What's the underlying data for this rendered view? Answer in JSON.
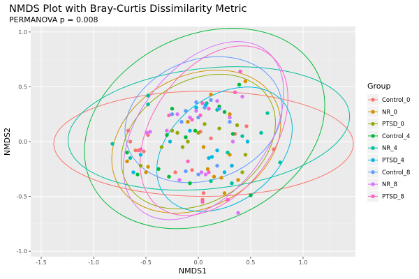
{
  "chart_data": {
    "type": "scatter",
    "title": "NMDS Plot with Bray-Curtis Dissimilarity Metric",
    "subtitle": "PERMANOVA p = 0.008",
    "xlabel": "NMDS1",
    "ylabel": "NMDS2",
    "xlim": [
      -1.6,
      1.5
    ],
    "ylim": [
      -1.05,
      1.05
    ],
    "xticks": [
      -1.5,
      -1.0,
      -0.5,
      0.0,
      0.5,
      1.0
    ],
    "xtick_labels": [
      "-1.5",
      "-1.0",
      "-0.5",
      "0.0",
      "0.5",
      "1.0"
    ],
    "yticks": [
      -1.0,
      -0.5,
      0.0,
      0.5,
      1.0
    ],
    "ytick_labels": [
      "-1.0",
      "-0.5",
      "0.0",
      "0.5",
      "1.0"
    ],
    "grid": true,
    "panel_background": "#ebebeb",
    "grid_color": "#ffffff",
    "legend": {
      "title": "Group",
      "position": "right"
    },
    "series": [
      {
        "name": "Control_0",
        "color": "#F8766D",
        "points": [
          [
            -0.67,
            0.1
          ],
          [
            -0.65,
            0.0
          ],
          [
            -0.6,
            -0.08
          ],
          [
            -0.57,
            -0.08
          ],
          [
            -0.48,
            0.06
          ],
          [
            -0.52,
            -0.09
          ],
          [
            0.02,
            0.09
          ],
          [
            0.12,
            0.03
          ],
          [
            -0.22,
            -0.28
          ],
          [
            0.35,
            0.07
          ],
          [
            0.46,
            0.14
          ],
          [
            0.05,
            -0.47
          ],
          [
            0.04,
            -0.53
          ],
          [
            0.72,
            -0.07
          ],
          [
            -0.06,
            -0.26
          ]
        ],
        "ellipse": {
          "cx": 0.05,
          "cy": -0.02,
          "rx": 1.43,
          "ry": 0.48,
          "angle": 0
        }
      },
      {
        "name": "NR_0",
        "color": "#D39200",
        "points": [
          [
            -0.68,
            -0.18
          ],
          [
            -0.5,
            -0.28
          ],
          [
            -0.48,
            -0.23
          ],
          [
            0.12,
            0.43
          ],
          [
            0.15,
            -0.32
          ],
          [
            0.25,
            -0.47
          ],
          [
            0.3,
            -0.12
          ],
          [
            0.05,
            -0.05
          ],
          [
            0.22,
            -0.33
          ],
          [
            0.38,
            -0.35
          ],
          [
            0.3,
            0.25
          ],
          [
            0.45,
            0.55
          ],
          [
            0.09,
            -0.25
          ],
          [
            -0.1,
            0.18
          ]
        ],
        "ellipse": {
          "cx": -0.02,
          "cy": 0.0,
          "rx": 0.85,
          "ry": 0.6,
          "angle": -28
        }
      },
      {
        "name": "PTSD_0",
        "color": "#93AA00",
        "points": [
          [
            -0.55,
            -0.22
          ],
          [
            -0.35,
            -0.05
          ],
          [
            -0.2,
            0.08
          ],
          [
            -0.25,
            0.1
          ],
          [
            -0.15,
            -0.05
          ],
          [
            -0.08,
            0.22
          ],
          [
            0.0,
            0.08
          ],
          [
            0.2,
            0.12
          ],
          [
            0.32,
            -0.22
          ],
          [
            0.42,
            -0.28
          ],
          [
            0.45,
            -0.12
          ],
          [
            0.37,
            0.15
          ],
          [
            -0.1,
            0.0
          ],
          [
            0.06,
            0.16
          ]
        ],
        "ellipse": {
          "cx": 0.0,
          "cy": 0.0,
          "rx": 0.79,
          "ry": 0.55,
          "angle": -32
        }
      },
      {
        "name": "Control_4",
        "color": "#00BA38",
        "points": [
          [
            -0.68,
            -0.1
          ],
          [
            -0.58,
            -0.3
          ],
          [
            -0.38,
            -0.25
          ],
          [
            -0.28,
            -0.32
          ],
          [
            -0.25,
            0.3
          ],
          [
            0.2,
            0.32
          ],
          [
            -0.03,
            0.1
          ],
          [
            -0.3,
            0.06
          ],
          [
            0.33,
            0.07
          ],
          [
            0.39,
            0.52
          ],
          [
            0.25,
            0.27
          ],
          [
            -0.08,
            -0.38
          ],
          [
            0.5,
            -0.49
          ],
          [
            -0.12,
            0.04
          ]
        ],
        "ellipse": {
          "cx": 0.06,
          "cy": 0.12,
          "rx": 1.2,
          "ry": 0.85,
          "angle": -26
        }
      },
      {
        "name": "NR_4",
        "color": "#00C19F",
        "points": [
          [
            -0.82,
            -0.02
          ],
          [
            -0.65,
            -0.15
          ],
          [
            -0.48,
            0.42
          ],
          [
            -0.48,
            0.34
          ],
          [
            -0.12,
            0.28
          ],
          [
            0.08,
            0.35
          ],
          [
            0.18,
            0.29
          ],
          [
            0.12,
            -0.36
          ],
          [
            0.28,
            -0.1
          ],
          [
            0.42,
            0.05
          ],
          [
            0.6,
            0.08
          ],
          [
            0.66,
            0.26
          ],
          [
            0.78,
            -0.19
          ],
          [
            0.32,
            -0.38
          ]
        ],
        "ellipse": {
          "cx": 0.1,
          "cy": 0.12,
          "rx": 1.35,
          "ry": 0.55,
          "angle": -6
        }
      },
      {
        "name": "PTSD_4",
        "color": "#00B9E3",
        "points": [
          [
            -0.62,
            -0.28
          ],
          [
            -0.55,
            -0.12
          ],
          [
            -0.27,
            0.0
          ],
          [
            -0.08,
            0.1
          ],
          [
            0.07,
            0.33
          ],
          [
            0.1,
            -0.15
          ],
          [
            0.18,
            -0.08
          ],
          [
            0.25,
            -0.28
          ],
          [
            0.32,
            -0.22
          ],
          [
            0.47,
            0.0
          ],
          [
            -0.02,
            0.31
          ],
          [
            0.13,
            -0.14
          ]
        ],
        "ellipse": {
          "cx": 0.25,
          "cy": -0.07,
          "rx": 0.72,
          "ry": 0.48,
          "angle": -38
        }
      },
      {
        "name": "Control_8",
        "color": "#619CFF",
        "points": [
          [
            -0.25,
            0.25
          ],
          [
            -0.16,
            0.18
          ],
          [
            -0.02,
            0.36
          ],
          [
            0.0,
            0.22
          ],
          [
            0.0,
            -0.3
          ],
          [
            0.12,
            0.38
          ],
          [
            0.2,
            0.3
          ],
          [
            -0.12,
            -0.27
          ],
          [
            0.18,
            -0.22
          ],
          [
            0.3,
            0.18
          ],
          [
            -0.12,
            0.28
          ],
          [
            0.06,
            0.31
          ]
        ],
        "ellipse": {
          "cx": 0.05,
          "cy": 0.2,
          "rx": 0.77,
          "ry": 0.55,
          "angle": -20
        }
      },
      {
        "name": "NR_8",
        "color": "#DB72FB",
        "points": [
          [
            -0.3,
            0.1
          ],
          [
            -0.2,
            0.25
          ],
          [
            -0.18,
            -0.35
          ],
          [
            -0.02,
            0.28
          ],
          [
            0.03,
            -0.28
          ],
          [
            0.18,
            0.37
          ],
          [
            0.3,
            0.22
          ],
          [
            0.33,
            0.0
          ],
          [
            0.38,
            -0.65
          ],
          [
            0.42,
            0.41
          ],
          [
            0.07,
            -0.3
          ],
          [
            -0.08,
            0.22
          ],
          [
            -0.49,
            0.08
          ],
          [
            -0.46,
            0.09
          ]
        ],
        "ellipse": {
          "cx": 0.05,
          "cy": 0.1,
          "rx": 0.97,
          "ry": 0.58,
          "angle": -52
        }
      },
      {
        "name": "PTSD_8",
        "color": "#FF61C3",
        "points": [
          [
            -0.55,
            -0.07
          ],
          [
            -0.28,
            0.24
          ],
          [
            -0.1,
            -0.18
          ],
          [
            0.02,
            0.24
          ],
          [
            0.04,
            0.35
          ],
          [
            0.1,
            0.3
          ],
          [
            0.1,
            -0.28
          ],
          [
            0.28,
            -0.53
          ],
          [
            0.4,
            0.64
          ],
          [
            0.35,
            0.45
          ],
          [
            -0.06,
            0.2
          ],
          [
            0.04,
            -0.55
          ]
        ],
        "ellipse": {
          "cx": 0.15,
          "cy": 0.1,
          "rx": 0.9,
          "ry": 0.56,
          "angle": -55
        }
      }
    ]
  }
}
